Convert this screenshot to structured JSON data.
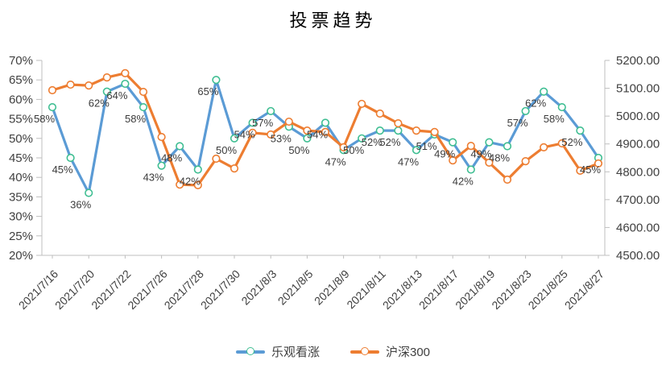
{
  "title": "投票趋势",
  "chart_data": {
    "type": "line",
    "title": "投票趋势",
    "n_points": 31,
    "grid": "off",
    "legend_position": "bottom",
    "x_tick_labels": [
      {
        "i": 0,
        "label": "2021/7/16"
      },
      {
        "i": 2,
        "label": "2021/7/20"
      },
      {
        "i": 4,
        "label": "2021/7/22"
      },
      {
        "i": 6,
        "label": "2021/7/26"
      },
      {
        "i": 8,
        "label": "2021/7/28"
      },
      {
        "i": 10,
        "label": "2021/7/30"
      },
      {
        "i": 12,
        "label": "2021/8/3"
      },
      {
        "i": 14,
        "label": "2021/8/5"
      },
      {
        "i": 16,
        "label": "2021/8/9"
      },
      {
        "i": 18,
        "label": "2021/8/11"
      },
      {
        "i": 20,
        "label": "2021/8/13"
      },
      {
        "i": 22,
        "label": "2021/8/17"
      },
      {
        "i": 24,
        "label": "2021/8/19"
      },
      {
        "i": 26,
        "label": "2021/8/23"
      },
      {
        "i": 28,
        "label": "2021/8/25"
      },
      {
        "i": 30,
        "label": "2021/8/27"
      }
    ],
    "left_axis": {
      "min": 20,
      "max": 70,
      "step": 5,
      "unit": "%",
      "tick_labels": [
        "70%",
        "65%",
        "60%",
        "55%",
        "50%",
        "45%",
        "40%",
        "35%",
        "30%",
        "25%",
        "20%"
      ]
    },
    "right_axis": {
      "min": 4500,
      "max": 5200,
      "step": 100,
      "tick_labels": [
        "5200.00",
        "5100.00",
        "5000.00",
        "4900.00",
        "4800.00",
        "4700.00",
        "4600.00",
        "4500.00"
      ]
    },
    "series": [
      {
        "name": "乐观看涨",
        "axis": "left",
        "color": "#5B9BD5",
        "marker_stroke": "#3FBE92",
        "marker_fill": "#ffffff",
        "show_labels": true,
        "label_suffix": "%",
        "values": [
          58,
          45,
          36,
          62,
          64,
          58,
          43,
          48,
          42,
          65,
          50,
          54,
          57,
          53,
          50,
          54,
          47,
          50,
          52,
          52,
          47,
          51,
          49,
          42,
          49,
          48,
          57,
          62,
          58,
          52,
          45
        ]
      },
      {
        "name": "沪深300",
        "axis": "right",
        "color": "#ED7D31",
        "marker_stroke": "#ED7D31",
        "marker_fill": "#ffffff",
        "show_labels": false,
        "values": [
          5093,
          5113,
          5110,
          5139,
          5154,
          5087,
          4925,
          4754,
          4752,
          4847,
          4812,
          4940,
          4934,
          4980,
          4948,
          4943,
          4888,
          5044,
          5009,
          4974,
          4948,
          4943,
          4841,
          4893,
          4833,
          4772,
          4838,
          4888,
          4902,
          4804,
          4830
        ]
      }
    ],
    "colors": {
      "axis_line": "#BFBFBF",
      "label_text": "#3B3B3B",
      "axis_text": "#404040"
    }
  }
}
